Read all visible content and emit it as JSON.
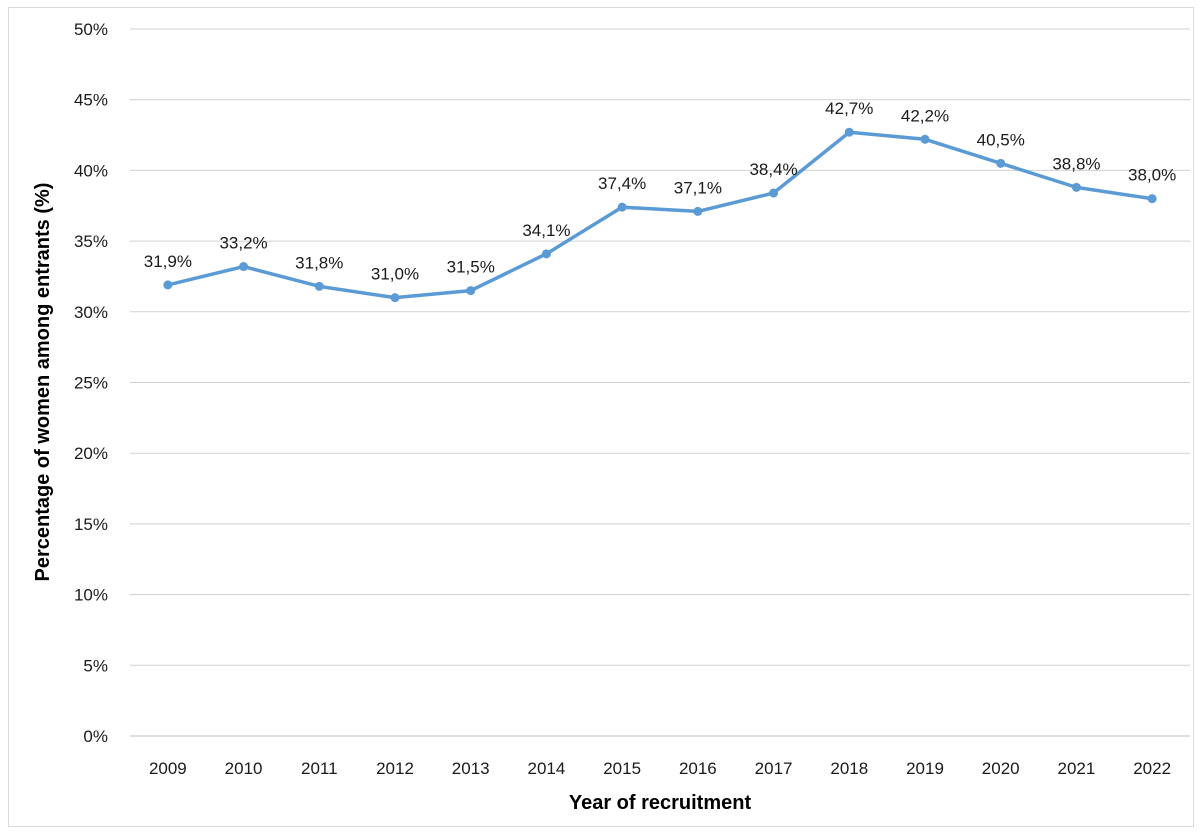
{
  "chart_data": {
    "type": "line",
    "title": "",
    "xlabel": "Year of recruitment",
    "ylabel": "Percentage of women among entrants (%)",
    "categories": [
      "2009",
      "2010",
      "2011",
      "2012",
      "2013",
      "2014",
      "2015",
      "2016",
      "2017",
      "2018",
      "2019",
      "2020",
      "2021",
      "2022"
    ],
    "series": [
      {
        "values": [
          31.9,
          33.2,
          31.8,
          31.0,
          31.5,
          34.1,
          37.4,
          37.1,
          38.4,
          42.7,
          42.2,
          40.5,
          38.8,
          38.0
        ],
        "data_labels": [
          "31,9%",
          "33,2%",
          "31,8%",
          "31,0%",
          "31,5%",
          "34,1%",
          "37,4%",
          "37,1%",
          "38,4%",
          "42,7%",
          "42,2%",
          "40,5%",
          "38,8%",
          "38,0%"
        ],
        "color": "#5b9bd5"
      }
    ],
    "ylim": [
      0,
      50
    ],
    "yticks": [
      0,
      5,
      10,
      15,
      20,
      25,
      30,
      35,
      40,
      45,
      50
    ],
    "ytick_labels": [
      "0%",
      "5%",
      "10%",
      "15%",
      "20%",
      "25%",
      "30%",
      "35%",
      "40%",
      "45%",
      "50%"
    ],
    "grid": true,
    "legend": "none",
    "gridline_color": "#d0d0d0",
    "text_color": "#1a1a1a"
  }
}
